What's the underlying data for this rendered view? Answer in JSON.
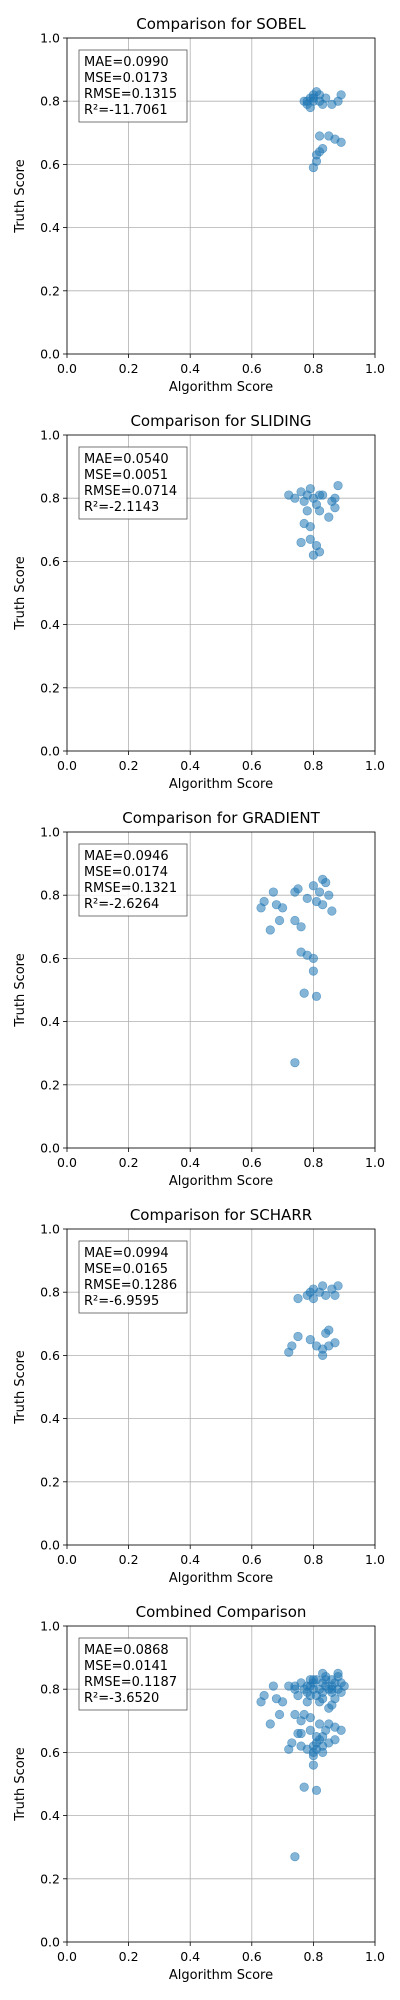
{
  "chart_data": [
    {
      "type": "scatter",
      "title": "Comparison for SOBEL",
      "xlabel": "Algorithm Score",
      "ylabel": "Truth Score",
      "xlim": [
        0,
        1
      ],
      "ylim": [
        0,
        1
      ],
      "xticks": [
        "0.0",
        "0.2",
        "0.4",
        "0.6",
        "0.8",
        "1.0"
      ],
      "yticks": [
        "0.0",
        "0.2",
        "0.4",
        "0.6",
        "0.8",
        "1.0"
      ],
      "grid": true,
      "color": "#1f77b4",
      "stats": [
        "MAE=0.0990",
        "MSE=0.0173",
        "RMSE=0.1315",
        "R²=-11.7061"
      ],
      "stats_placement": "top-left",
      "points": [
        [
          0.77,
          0.8
        ],
        [
          0.78,
          0.79
        ],
        [
          0.79,
          0.81
        ],
        [
          0.8,
          0.82
        ],
        [
          0.81,
          0.83
        ],
        [
          0.82,
          0.8
        ],
        [
          0.83,
          0.79
        ],
        [
          0.84,
          0.81
        ],
        [
          0.79,
          0.78
        ],
        [
          0.8,
          0.8
        ],
        [
          0.88,
          0.8
        ],
        [
          0.89,
          0.82
        ],
        [
          0.82,
          0.69
        ],
        [
          0.85,
          0.69
        ],
        [
          0.87,
          0.68
        ],
        [
          0.89,
          0.67
        ],
        [
          0.82,
          0.64
        ],
        [
          0.83,
          0.65
        ],
        [
          0.81,
          0.61
        ],
        [
          0.8,
          0.59
        ],
        [
          0.81,
          0.63
        ],
        [
          0.86,
          0.79
        ],
        [
          0.78,
          0.8
        ],
        [
          0.8,
          0.81
        ],
        [
          0.82,
          0.82
        ]
      ]
    },
    {
      "type": "scatter",
      "title": "Comparison for SLIDING",
      "xlabel": "Algorithm Score",
      "ylabel": "Truth Score",
      "xlim": [
        0,
        1
      ],
      "ylim": [
        0,
        1
      ],
      "xticks": [
        "0.0",
        "0.2",
        "0.4",
        "0.6",
        "0.8",
        "1.0"
      ],
      "yticks": [
        "0.0",
        "0.2",
        "0.4",
        "0.6",
        "0.8",
        "1.0"
      ],
      "grid": true,
      "color": "#1f77b4",
      "stats": [
        "MAE=0.0540",
        "MSE=0.0051",
        "RMSE=0.0714",
        "R²=-2.1143"
      ],
      "stats_placement": "top-left",
      "points": [
        [
          0.72,
          0.81
        ],
        [
          0.74,
          0.8
        ],
        [
          0.76,
          0.82
        ],
        [
          0.77,
          0.79
        ],
        [
          0.78,
          0.81
        ],
        [
          0.79,
          0.83
        ],
        [
          0.8,
          0.8
        ],
        [
          0.81,
          0.78
        ],
        [
          0.82,
          0.81
        ],
        [
          0.86,
          0.79
        ],
        [
          0.87,
          0.8
        ],
        [
          0.88,
          0.84
        ],
        [
          0.85,
          0.74
        ],
        [
          0.87,
          0.77
        ],
        [
          0.78,
          0.76
        ],
        [
          0.77,
          0.72
        ],
        [
          0.79,
          0.71
        ],
        [
          0.76,
          0.66
        ],
        [
          0.79,
          0.67
        ],
        [
          0.81,
          0.65
        ],
        [
          0.82,
          0.63
        ],
        [
          0.8,
          0.62
        ],
        [
          0.82,
          0.76
        ],
        [
          0.83,
          0.81
        ]
      ]
    },
    {
      "type": "scatter",
      "title": "Comparison for GRADIENT",
      "xlabel": "Algorithm Score",
      "ylabel": "Truth Score",
      "xlim": [
        0,
        1
      ],
      "ylim": [
        0,
        1
      ],
      "xticks": [
        "0.0",
        "0.2",
        "0.4",
        "0.6",
        "0.8",
        "1.0"
      ],
      "yticks": [
        "0.0",
        "0.2",
        "0.4",
        "0.6",
        "0.8",
        "1.0"
      ],
      "grid": true,
      "color": "#1f77b4",
      "stats": [
        "MAE=0.0946",
        "MSE=0.0174",
        "RMSE=0.1321",
        "R²=-2.6264"
      ],
      "stats_placement": "top-left",
      "points": [
        [
          0.63,
          0.76
        ],
        [
          0.64,
          0.78
        ],
        [
          0.66,
          0.69
        ],
        [
          0.67,
          0.81
        ],
        [
          0.68,
          0.77
        ],
        [
          0.69,
          0.72
        ],
        [
          0.7,
          0.76
        ],
        [
          0.74,
          0.81
        ],
        [
          0.75,
          0.82
        ],
        [
          0.76,
          0.7
        ],
        [
          0.74,
          0.72
        ],
        [
          0.78,
          0.79
        ],
        [
          0.8,
          0.83
        ],
        [
          0.82,
          0.81
        ],
        [
          0.83,
          0.85
        ],
        [
          0.84,
          0.84
        ],
        [
          0.85,
          0.8
        ],
        [
          0.81,
          0.78
        ],
        [
          0.83,
          0.77
        ],
        [
          0.86,
          0.75
        ],
        [
          0.76,
          0.62
        ],
        [
          0.78,
          0.61
        ],
        [
          0.8,
          0.6
        ],
        [
          0.8,
          0.56
        ],
        [
          0.77,
          0.49
        ],
        [
          0.81,
          0.48
        ],
        [
          0.74,
          0.27
        ]
      ]
    },
    {
      "type": "scatter",
      "title": "Comparison for SCHARR",
      "xlabel": "Algorithm Score",
      "ylabel": "Truth Score",
      "xlim": [
        0,
        1
      ],
      "ylim": [
        0,
        1
      ],
      "xticks": [
        "0.0",
        "0.2",
        "0.4",
        "0.6",
        "0.8",
        "1.0"
      ],
      "yticks": [
        "0.0",
        "0.2",
        "0.4",
        "0.6",
        "0.8",
        "1.0"
      ],
      "grid": true,
      "color": "#1f77b4",
      "stats": [
        "MAE=0.0994",
        "MSE=0.0165",
        "RMSE=0.1286",
        "R²=-6.9595"
      ],
      "stats_placement": "top-left",
      "points": [
        [
          0.75,
          0.78
        ],
        [
          0.78,
          0.79
        ],
        [
          0.79,
          0.8
        ],
        [
          0.8,
          0.81
        ],
        [
          0.82,
          0.8
        ],
        [
          0.83,
          0.82
        ],
        [
          0.84,
          0.79
        ],
        [
          0.86,
          0.81
        ],
        [
          0.88,
          0.82
        ],
        [
          0.87,
          0.79
        ],
        [
          0.85,
          0.68
        ],
        [
          0.84,
          0.67
        ],
        [
          0.81,
          0.63
        ],
        [
          0.83,
          0.62
        ],
        [
          0.85,
          0.63
        ],
        [
          0.87,
          0.64
        ],
        [
          0.83,
          0.6
        ],
        [
          0.75,
          0.66
        ],
        [
          0.79,
          0.65
        ],
        [
          0.72,
          0.61
        ],
        [
          0.73,
          0.63
        ],
        [
          0.8,
          0.78
        ]
      ]
    },
    {
      "type": "scatter",
      "title": "Combined Comparison",
      "xlabel": "Algorithm Score",
      "ylabel": "Truth Score",
      "xlim": [
        0,
        1
      ],
      "ylim": [
        0,
        1
      ],
      "xticks": [
        "0.0",
        "0.2",
        "0.4",
        "0.6",
        "0.8",
        "1.0"
      ],
      "yticks": [
        "0.0",
        "0.2",
        "0.4",
        "0.6",
        "0.8",
        "1.0"
      ],
      "grid": true,
      "color": "#1f77b4",
      "stats": [
        "MAE=0.0868",
        "MSE=0.0141",
        "RMSE=0.1187",
        "R²=-3.6520"
      ],
      "stats_placement": "top-left",
      "points": [
        [
          0.77,
          0.8
        ],
        [
          0.78,
          0.79
        ],
        [
          0.79,
          0.81
        ],
        [
          0.8,
          0.82
        ],
        [
          0.81,
          0.83
        ],
        [
          0.82,
          0.8
        ],
        [
          0.83,
          0.79
        ],
        [
          0.84,
          0.81
        ],
        [
          0.79,
          0.78
        ],
        [
          0.8,
          0.8
        ],
        [
          0.88,
          0.8
        ],
        [
          0.89,
          0.82
        ],
        [
          0.82,
          0.69
        ],
        [
          0.85,
          0.69
        ],
        [
          0.87,
          0.68
        ],
        [
          0.89,
          0.67
        ],
        [
          0.82,
          0.64
        ],
        [
          0.83,
          0.65
        ],
        [
          0.81,
          0.61
        ],
        [
          0.8,
          0.59
        ],
        [
          0.81,
          0.63
        ],
        [
          0.86,
          0.79
        ],
        [
          0.72,
          0.81
        ],
        [
          0.74,
          0.8
        ],
        [
          0.76,
          0.82
        ],
        [
          0.78,
          0.81
        ],
        [
          0.79,
          0.83
        ],
        [
          0.81,
          0.78
        ],
        [
          0.86,
          0.8
        ],
        [
          0.88,
          0.84
        ],
        [
          0.85,
          0.74
        ],
        [
          0.87,
          0.77
        ],
        [
          0.78,
          0.76
        ],
        [
          0.77,
          0.72
        ],
        [
          0.79,
          0.71
        ],
        [
          0.76,
          0.66
        ],
        [
          0.79,
          0.67
        ],
        [
          0.81,
          0.65
        ],
        [
          0.8,
          0.62
        ],
        [
          0.82,
          0.76
        ],
        [
          0.63,
          0.76
        ],
        [
          0.64,
          0.78
        ],
        [
          0.66,
          0.69
        ],
        [
          0.67,
          0.81
        ],
        [
          0.68,
          0.77
        ],
        [
          0.69,
          0.72
        ],
        [
          0.7,
          0.76
        ],
        [
          0.74,
          0.81
        ],
        [
          0.76,
          0.7
        ],
        [
          0.74,
          0.72
        ],
        [
          0.8,
          0.83
        ],
        [
          0.83,
          0.85
        ],
        [
          0.84,
          0.84
        ],
        [
          0.85,
          0.8
        ],
        [
          0.83,
          0.77
        ],
        [
          0.86,
          0.75
        ],
        [
          0.76,
          0.62
        ],
        [
          0.78,
          0.61
        ],
        [
          0.8,
          0.6
        ],
        [
          0.8,
          0.56
        ],
        [
          0.77,
          0.49
        ],
        [
          0.81,
          0.48
        ],
        [
          0.74,
          0.27
        ],
        [
          0.75,
          0.78
        ],
        [
          0.83,
          0.82
        ],
        [
          0.86,
          0.81
        ],
        [
          0.84,
          0.67
        ],
        [
          0.83,
          0.62
        ],
        [
          0.85,
          0.63
        ],
        [
          0.87,
          0.64
        ],
        [
          0.83,
          0.6
        ],
        [
          0.75,
          0.66
        ],
        [
          0.72,
          0.61
        ],
        [
          0.73,
          0.63
        ],
        [
          0.86,
          0.83
        ],
        [
          0.88,
          0.85
        ],
        [
          0.87,
          0.82
        ],
        [
          0.89,
          0.79
        ],
        [
          0.9,
          0.81
        ],
        [
          0.84,
          0.83
        ]
      ]
    }
  ]
}
